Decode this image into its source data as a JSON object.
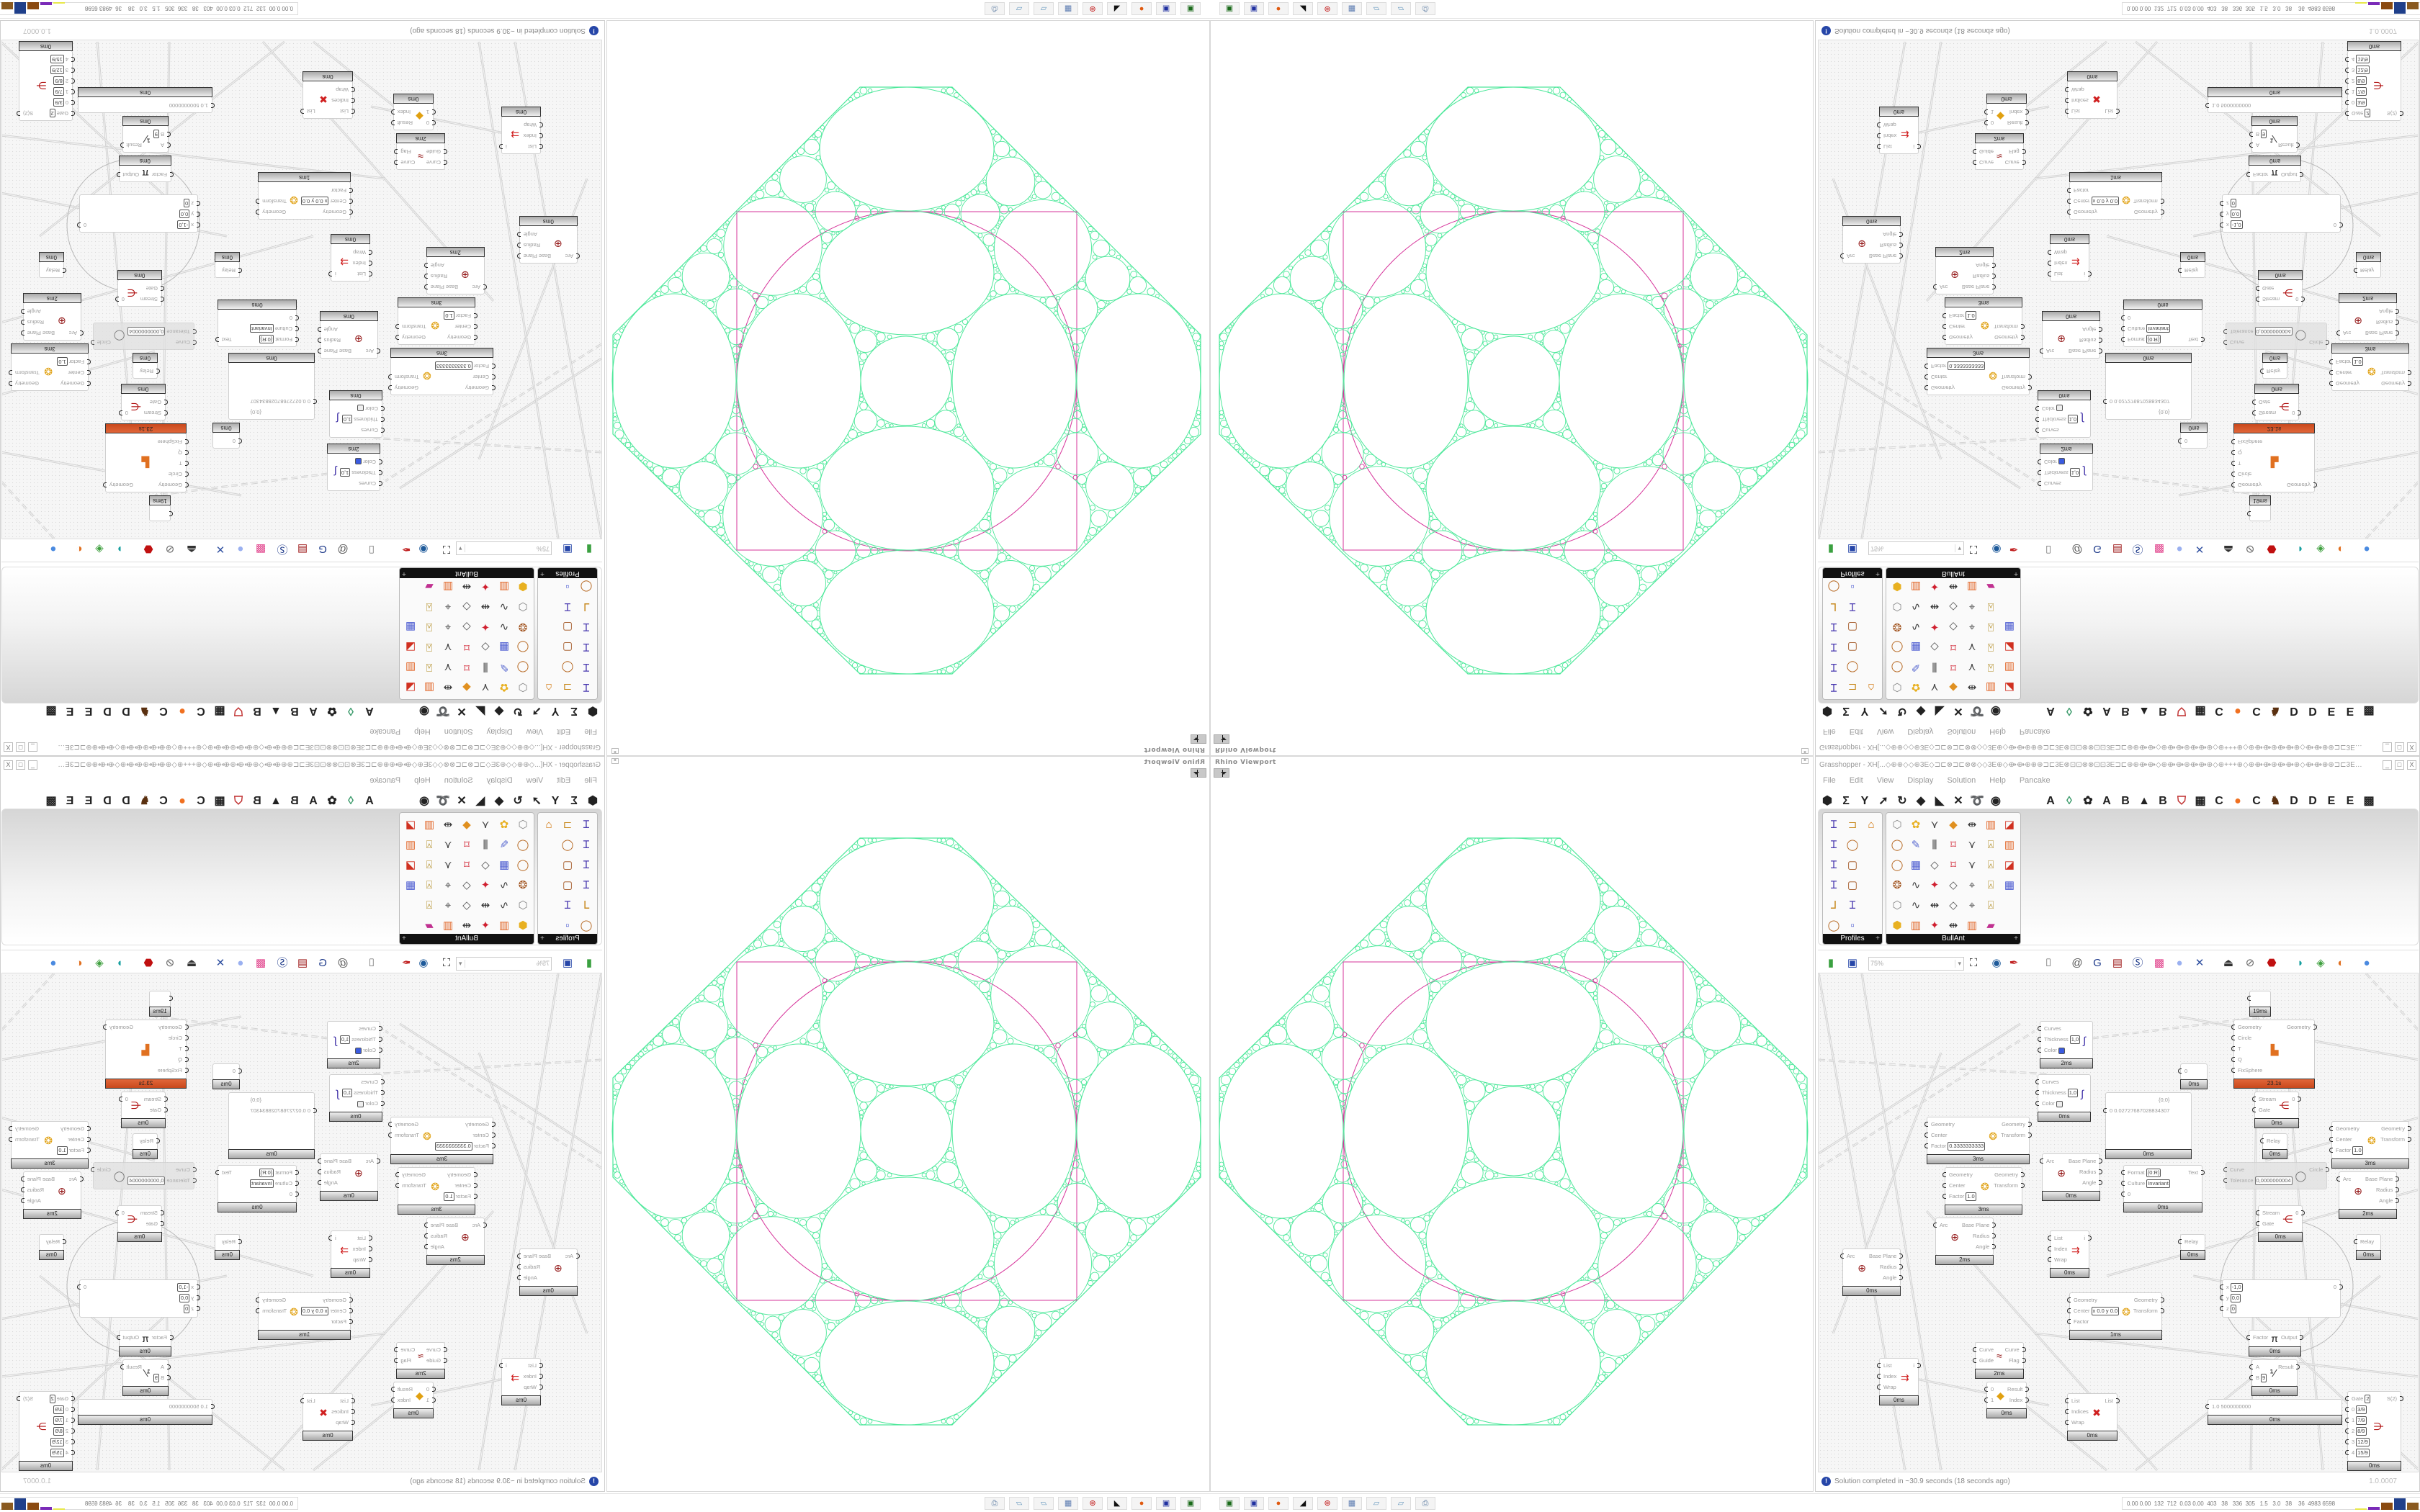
{
  "colors": {
    "circle_stroke": "#4de89a",
    "frame_stroke": "#d6339a",
    "accent_orange": "#d9562a",
    "info_blue": "#2646a8"
  },
  "viewport": {
    "title": "Rhino Viewport",
    "close": "×"
  },
  "grasshopper": {
    "title": "Grasshopper - XH[...◇⊕⊕◇◇⊕3E◇⊐⊏⊗⊐⊏⊗⊗◇◇3E⊕◇⟴⟴⊕⊕⊕⊐⊏3E⊗⊡⊡⊗⊗⊡⊡3E⊐⊏⊕⊕⟴⟴◇⊕⟴⟴⊕⟴⟴⊕◇⊕+++⊕◇⊕⟴⟴⊕⟴⟴⊕◇⟴⟴⊕⊕⊐⊏3E⊗⊡⊡⊗⊗...",
    "window_buttons": [
      "_",
      "□",
      "X"
    ],
    "menu": [
      "File",
      "Edit",
      "View",
      "Display",
      "Solution",
      "Help",
      "Pancake"
    ],
    "tab_icons": [
      {
        "icon": "params-hexagon-icon",
        "glyph": "⬢"
      },
      {
        "icon": "maths-sigma-icon",
        "glyph": "Σ"
      },
      {
        "icon": "sets-tree-icon",
        "glyph": "Y"
      },
      {
        "icon": "vector-arrow-icon",
        "glyph": "➚"
      },
      {
        "icon": "curve-icon",
        "glyph": "↻"
      },
      {
        "icon": "surface-icon",
        "glyph": "◆"
      },
      {
        "icon": "mesh-icon",
        "glyph": "◣"
      },
      {
        "icon": "intersect-icon",
        "glyph": "✕"
      },
      {
        "icon": "transform-icon",
        "glyph": "➰"
      },
      {
        "icon": "display-eye-icon",
        "glyph": "◉"
      },
      {
        "icon": "plugin-a-icon",
        "glyph": "A"
      },
      {
        "icon": "leaf-icon",
        "glyph": "◊"
      },
      {
        "icon": "puzzle-icon",
        "glyph": "✿"
      },
      {
        "icon": "plugin-a2-icon",
        "glyph": "A"
      },
      {
        "icon": "plugin-b-icon",
        "glyph": "B"
      },
      {
        "icon": "mountain-icon",
        "glyph": "▲"
      },
      {
        "icon": "plugin-b2-icon",
        "glyph": "B"
      },
      {
        "icon": "shield-icon",
        "glyph": "⛉"
      },
      {
        "icon": "grid-icon",
        "glyph": "▦"
      },
      {
        "icon": "plugin-c-icon",
        "glyph": "C"
      },
      {
        "icon": "orange-circle-icon",
        "glyph": "●"
      },
      {
        "icon": "plugin-c2-icon",
        "glyph": "C"
      },
      {
        "icon": "bird-icon",
        "glyph": "♞"
      },
      {
        "icon": "plugin-d-icon",
        "glyph": "D"
      },
      {
        "icon": "plugin-d2-icon",
        "glyph": "D"
      },
      {
        "icon": "plugin-e-icon",
        "glyph": "E"
      },
      {
        "icon": "plugin-e2-icon",
        "glyph": "E"
      },
      {
        "icon": "more-tabs-icon",
        "glyph": "▩"
      }
    ],
    "palettes": [
      {
        "label": "Profiles",
        "expand": "+",
        "cols": 3,
        "icons": [
          "i-section-icon",
          "c-channel-icon",
          "arch-icon",
          "i-section-icon",
          "ring-icon",
          "",
          "i-beam-icon",
          "rect-tube-icon",
          "",
          "i-beam-icon",
          "rect-tube-icon",
          "",
          "angle-icon",
          "i-section-icon",
          "",
          "ring-icon",
          "points-icon",
          ""
        ]
      },
      {
        "label": "BullAnt",
        "expand": "+",
        "cols": 7,
        "icons": [
          "box-icon",
          "flower-icon",
          "tri-tree-icon",
          "kite-icon",
          "dim-icon",
          "frame-icon",
          "graph-icon",
          "ring-icon",
          "pen-icon",
          "bars-icon",
          "quad-icon",
          "tri-icon",
          "lock-icon",
          "frame2-icon",
          "ring-icon",
          "cube-icon",
          "poly-icon",
          "quad-icon",
          "tri-icon",
          "lock-icon",
          "graph-icon",
          "sphere-icon",
          "curve-icon",
          "star-icon",
          "poly-icon",
          "node-icon",
          "lock-icon",
          "cube-icon",
          "box-icon",
          "curve-icon",
          "dim-icon",
          "poly-icon",
          "node-icon",
          "lock-icon",
          "",
          "gem-icon",
          "frame-icon",
          "star-icon",
          "dim-icon",
          "frame-icon",
          "rainbow-icon",
          ""
        ]
      }
    ],
    "toolbar": {
      "zoom_value": "75%",
      "icons": [
        "new-file-icon",
        "save-icon",
        "zoom-extents-icon",
        "eye-icon",
        "sketch-pen-icon",
        "capsule-icon",
        "at-icon",
        "gha-icon",
        "image-icon",
        "search-s-icon",
        "package-icon",
        "bulb-icon",
        "wires-icon",
        "bell-icon",
        "link-icon",
        "red-box-icon",
        "teal-shape-icon",
        "green-shape-icon",
        "half-sphere-icon",
        "blue-sphere-icon"
      ]
    },
    "status": {
      "message": "Solution completed in ~30.9 seconds (18 seconds ago)",
      "version": "1.0.0007",
      "icon": "info-icon"
    }
  },
  "canvas": {
    "nodes": [
      {
        "type": "custom-preview",
        "inputs": [
          {
            "label": "Curves"
          },
          {
            "label": "Thickness",
            "value": "1,0"
          },
          {
            "label": "Color",
            "swatch": "#3a5be0"
          }
        ],
        "outputs": [],
        "time": "2ms",
        "icon": "preview-pen-icon"
      },
      {
        "type": "custom-preview",
        "inputs": [
          {
            "label": "Curves"
          },
          {
            "label": "Thickness",
            "value": "1,0"
          },
          {
            "label": "Color",
            "swatch": "#eeeeee"
          }
        ],
        "outputs": [],
        "time": "0ms",
        "icon": "preview-pen-icon"
      },
      {
        "type": "scale",
        "inputs": [
          {
            "label": "Geometry"
          },
          {
            "label": "Center"
          },
          {
            "label": "Factor",
            "value": "0.3333333333"
          }
        ],
        "outputs": [
          {
            "label": "Geometry"
          },
          {
            "label": "Transform"
          }
        ],
        "time": "3ms",
        "icon": "scale-icon"
      },
      {
        "type": "scale",
        "inputs": [
          {
            "label": "Geometry"
          },
          {
            "label": "Center"
          },
          {
            "label": "Factor",
            "value": "1.0"
          }
        ],
        "outputs": [
          {
            "label": "Geometry"
          },
          {
            "label": "Transform"
          }
        ],
        "time": "3ms",
        "icon": "scale-icon"
      },
      {
        "type": "deconstruct-arc",
        "inputs": [
          {
            "label": "Arc"
          }
        ],
        "outputs": [
          {
            "label": "Base Plane"
          },
          {
            "label": "Radius"
          },
          {
            "label": "Angle"
          }
        ],
        "time": "0ms",
        "icon": "arc-target-icon"
      },
      {
        "type": "packing",
        "inputs": [
          {
            "label": "Geometry"
          },
          {
            "label": "Circle"
          },
          {
            "label": "T"
          },
          {
            "label": "Q"
          },
          {
            "label": "FixSphere"
          }
        ],
        "outputs": [
          {
            "label": "Geometry"
          }
        ],
        "time": "23.1s",
        "icon": "packing-icon",
        "state": "orange"
      },
      {
        "type": "param",
        "inputs": [
          {
            "label": "0"
          }
        ],
        "outputs": [],
        "time": "0ms"
      },
      {
        "type": "panel",
        "inputs": [
          {
            "label": "0  0.02727687028834307"
          }
        ],
        "outputs": [],
        "time": "0ms",
        "header": "{0;0}"
      },
      {
        "type": "stream-gate",
        "inputs": [
          {
            "label": "Stream"
          },
          {
            "label": "Gate"
          }
        ],
        "outputs": [
          {
            "label": "0"
          }
        ],
        "time": "0ms",
        "icon": "stream-gate-icon"
      },
      {
        "type": "relay",
        "inputs": [
          {
            "label": "Relay"
          }
        ],
        "outputs": [],
        "time": "0ms"
      },
      {
        "type": "format",
        "inputs": [
          {
            "label": "Format",
            "value": "{0:R}"
          },
          {
            "label": "Culture",
            "value": "Invariant"
          },
          {
            "label": "0"
          }
        ],
        "outputs": [
          {
            "label": "Text"
          }
        ],
        "time": "0ms"
      },
      {
        "type": "fit-circle",
        "inputs": [
          {
            "label": "Curve"
          },
          {
            "label": "Tolerance",
            "value": "0,0000000004"
          }
        ],
        "outputs": [
          {
            "label": "Circle"
          }
        ],
        "time": "",
        "icon": "circle-icon",
        "state": "disabled"
      },
      {
        "type": "scale",
        "inputs": [
          {
            "label": "Geometry"
          },
          {
            "label": "Center"
          },
          {
            "label": "Factor",
            "value": "1.0"
          }
        ],
        "outputs": [
          {
            "label": "Geometry"
          },
          {
            "label": "Transform"
          }
        ],
        "time": "3ms",
        "icon": "scale-icon"
      },
      {
        "type": "deconstruct-arc",
        "inputs": [
          {
            "label": "Arc"
          }
        ],
        "outputs": [
          {
            "label": "Base Plane"
          },
          {
            "label": "Radius"
          },
          {
            "label": "Angle"
          }
        ],
        "time": "2ms",
        "icon": "arc-target-icon"
      },
      {
        "type": "deconstruct-arc",
        "inputs": [
          {
            "label": "Arc"
          }
        ],
        "outputs": [
          {
            "label": "Base Plane"
          },
          {
            "label": "Radius"
          },
          {
            "label": "Angle"
          }
        ],
        "time": "0ms",
        "icon": "arc-target-icon"
      },
      {
        "type": "deconstruct-arc",
        "inputs": [
          {
            "label": "Arc"
          }
        ],
        "outputs": [
          {
            "label": "Base Plane"
          },
          {
            "label": "Radius"
          },
          {
            "label": "Angle"
          }
        ],
        "time": "2ms",
        "icon": "arc-target-icon"
      },
      {
        "type": "list-item",
        "inputs": [
          {
            "label": "List"
          },
          {
            "label": "Index"
          },
          {
            "label": "Wrap"
          }
        ],
        "outputs": [
          {
            "label": "i"
          }
        ],
        "time": "0ms",
        "icon": "list-item-icon"
      },
      {
        "type": "flip-curve",
        "inputs": [
          {
            "label": "Curve"
          },
          {
            "label": "Guide"
          }
        ],
        "outputs": [
          {
            "label": "Curve"
          },
          {
            "label": "Flag"
          }
        ],
        "time": "2ms",
        "icon": "flip-icon"
      },
      {
        "type": "dispatch",
        "inputs": [
          {
            "label": "0"
          },
          {
            "label": "1"
          }
        ],
        "outputs": [
          {
            "label": "Result"
          },
          {
            "label": "Index"
          }
        ],
        "time": "0ms",
        "icon": "pick-icon"
      },
      {
        "type": "cull-index",
        "inputs": [
          {
            "label": "List"
          },
          {
            "label": "Indices"
          },
          {
            "label": "Wrap"
          }
        ],
        "outputs": [
          {
            "label": "List"
          }
        ],
        "time": "0ms",
        "icon": "cull-icon"
      },
      {
        "type": "scale",
        "inputs": [
          {
            "label": "Geometry"
          },
          {
            "label": "Center",
            "value": "x 0.0 y 0.0"
          },
          {
            "label": "Factor"
          }
        ],
        "outputs": [
          {
            "label": "Geometry"
          },
          {
            "label": "Transform"
          }
        ],
        "time": "1ms",
        "icon": "scale-icon"
      },
      {
        "type": "list-item",
        "inputs": [
          {
            "label": "List"
          },
          {
            "label": "Index"
          },
          {
            "label": "Wrap"
          }
        ],
        "outputs": [
          {
            "label": "i"
          }
        ],
        "time": "0ms",
        "icon": "list-item-icon"
      },
      {
        "type": "stream-gate",
        "inputs": [
          {
            "label": "Stream"
          },
          {
            "label": "Gate"
          }
        ],
        "outputs": [
          {
            "label": "0"
          }
        ],
        "time": "0ms",
        "icon": "stream-gate-icon"
      },
      {
        "type": "relay",
        "inputs": [
          {
            "label": "Relay"
          }
        ],
        "outputs": [],
        "time": "0ms"
      },
      {
        "type": "relay",
        "inputs": [
          {
            "label": "Relay"
          }
        ],
        "outputs": [],
        "time": "0ms"
      },
      {
        "type": "slider",
        "inputs": [
          {
            "label": "x",
            "value": "-1,0"
          },
          {
            "label": "y",
            "value": "0,0"
          },
          {
            "label": "z",
            "value": "0"
          }
        ],
        "outputs": [
          {
            "label": "0"
          }
        ],
        "time": ""
      },
      {
        "type": "pi",
        "inputs": [
          {
            "label": "Factor"
          }
        ],
        "outputs": [
          {
            "label": "Output"
          }
        ],
        "time": "0ms",
        "icon": "pi-icon"
      },
      {
        "type": "division",
        "inputs": [
          {
            "label": "A"
          },
          {
            "label": "B",
            "value": "9"
          }
        ],
        "outputs": [
          {
            "label": "Result"
          }
        ],
        "time": "0ms",
        "icon": "division-icon"
      },
      {
        "type": "number-slider",
        "inputs": [
          {
            "label": "1.0  5000000000"
          }
        ],
        "outputs": [],
        "time": "0ms"
      },
      {
        "type": "stream-filter",
        "inputs": [
          {
            "label": "Gate",
            "value": "2"
          },
          {
            "label": "0",
            "value": "3/9"
          },
          {
            "label": "1",
            "value": "7/9"
          },
          {
            "label": "2",
            "value": "8/9"
          },
          {
            "label": "3",
            "value": "12/9"
          },
          {
            "label": "4",
            "value": "15/9"
          }
        ],
        "outputs": [
          {
            "label": "S(2)"
          }
        ],
        "time": "0ms",
        "icon": "stream-filter-icon"
      },
      {
        "type": "relay",
        "inputs": [
          {
            "label": ""
          }
        ],
        "outputs": [],
        "time": "19ms"
      }
    ]
  },
  "taskbar": {
    "icons": [
      "terminal-icon",
      "save-64-icon",
      "firefox-icon",
      "rhino-icon",
      "lifebuoy-icon",
      "calculator-icon",
      "notepad-icon",
      "notepad2-icon",
      "printer-icon"
    ],
    "stats": "0.00 0.00  132  712  0.03 0.00  403   38   336  305   1.5   3.0   38    36  4983 6598",
    "meter_colors": [
      "#e8e84a",
      "#7a2ab8",
      "#8a4a10",
      "#1f3f8a",
      "#8a5a20",
      "#3ac03a",
      "#c03030"
    ]
  }
}
